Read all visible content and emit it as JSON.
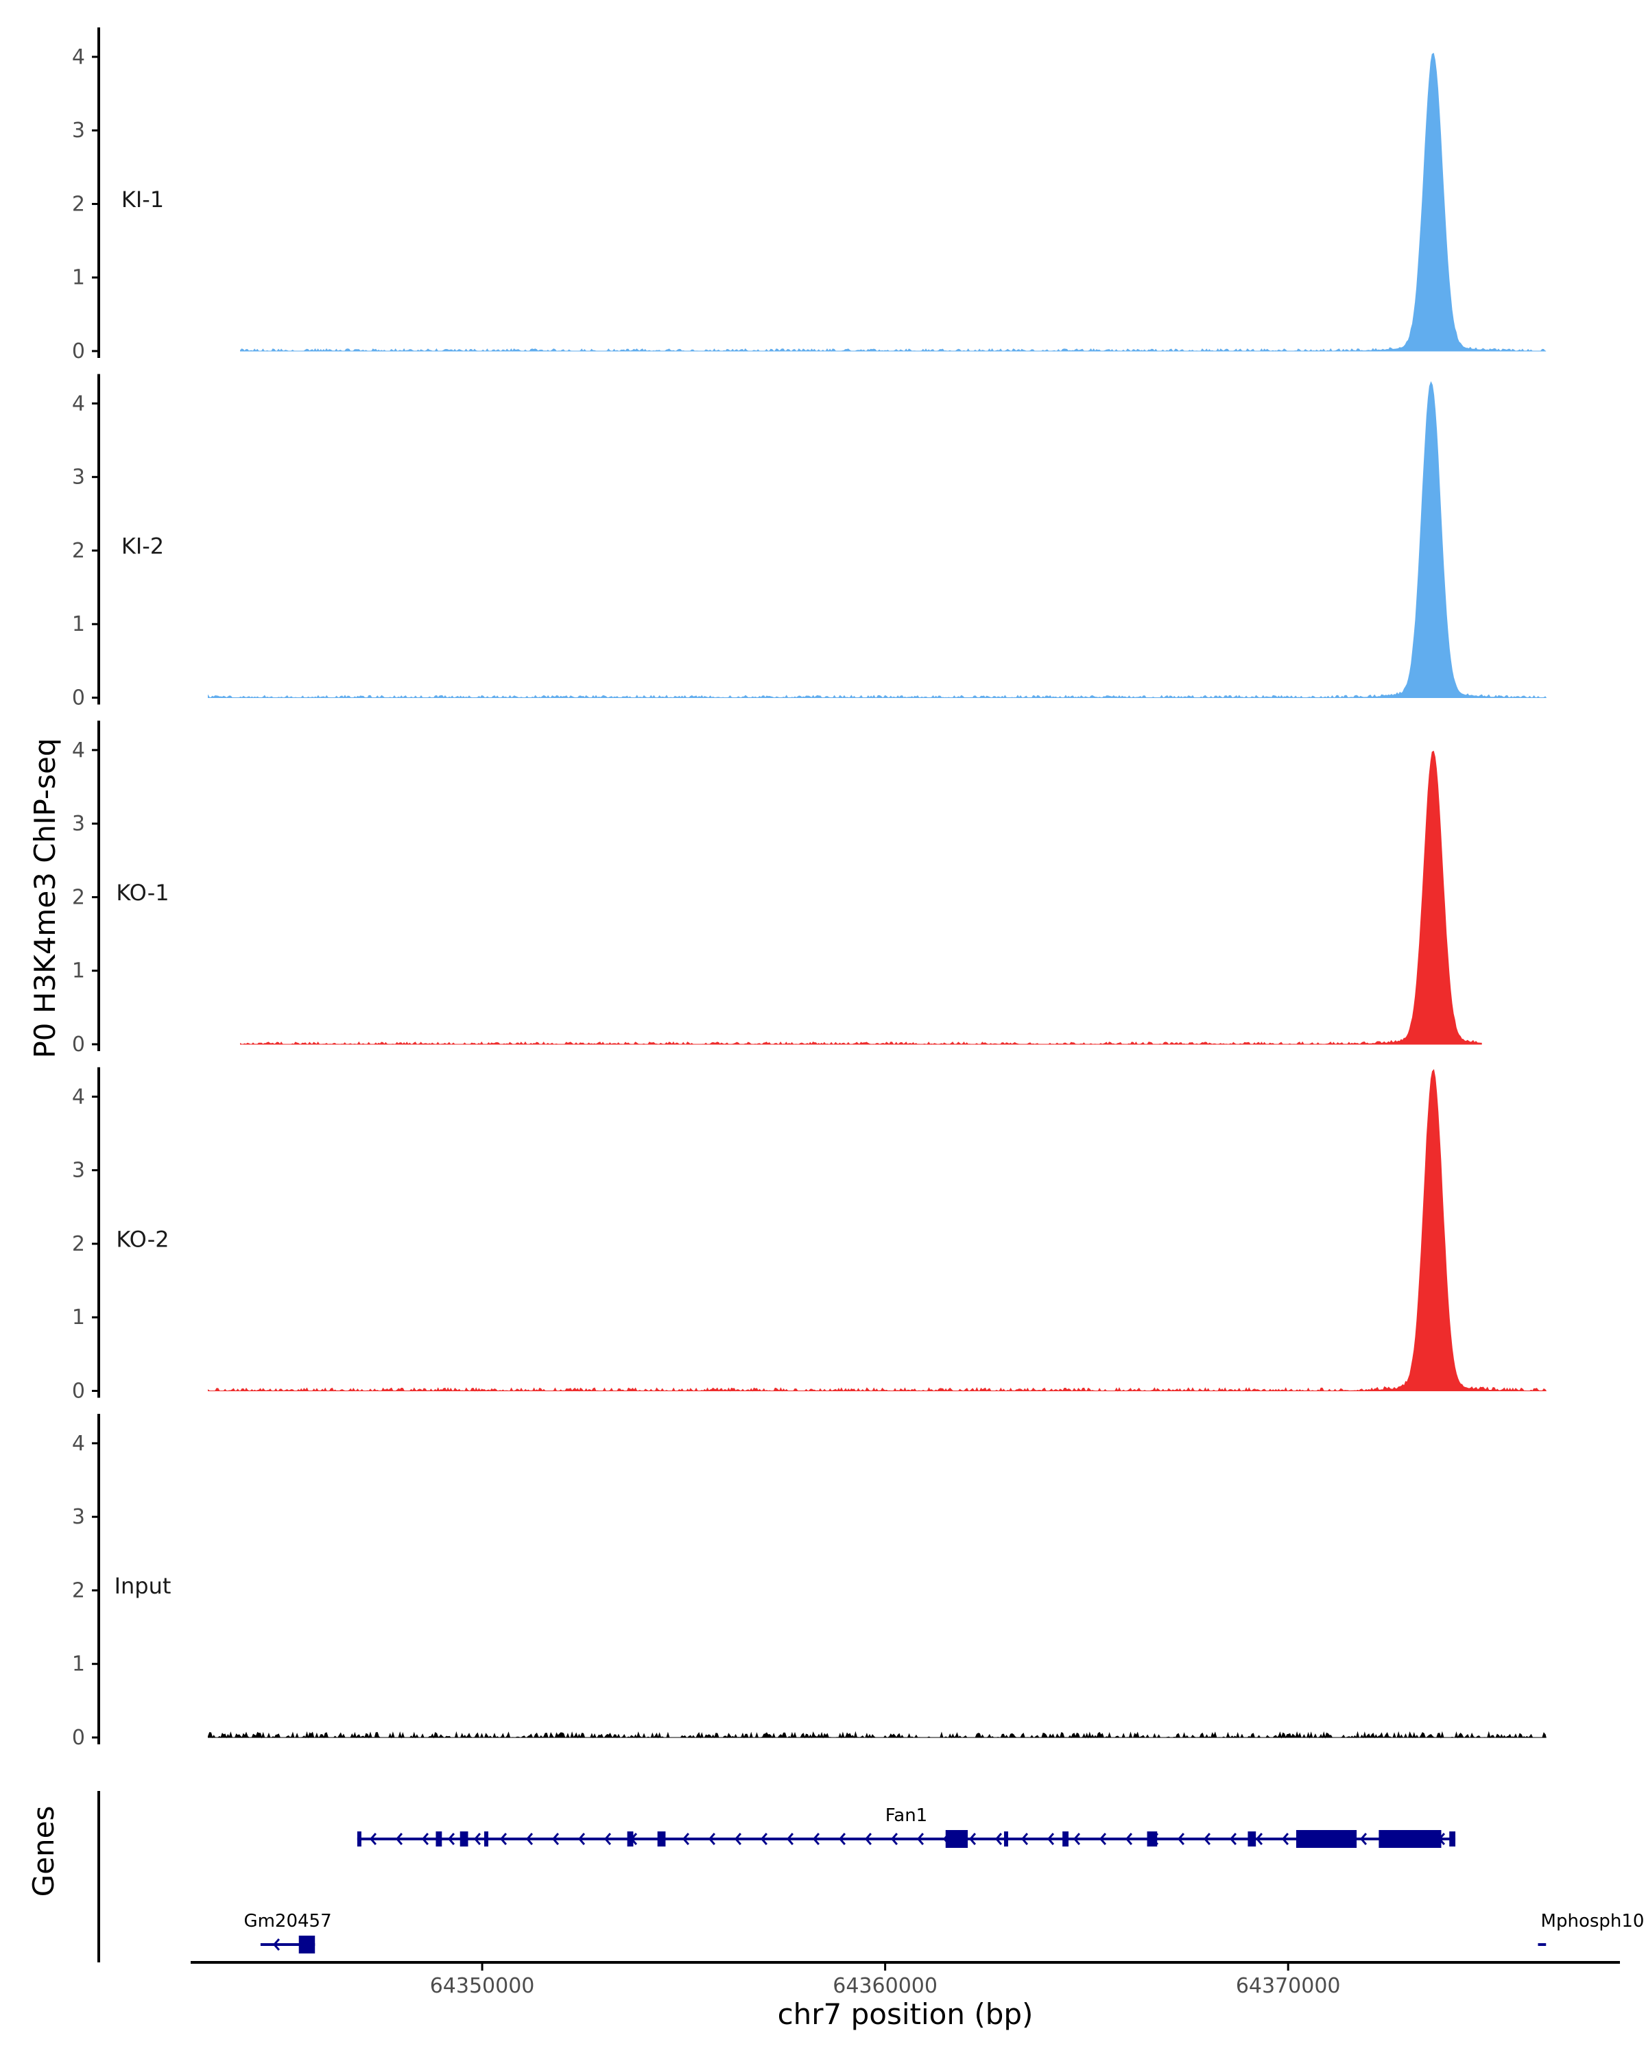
{
  "chart_data": {
    "type": "area",
    "ylabel": "P0 H3K4me3 ChIP-seq",
    "xlabel": "chr7 position (bp)",
    "xlim": [
      64342800,
      64378200
    ],
    "ylim": [
      0,
      4.4
    ],
    "yticks": [
      0,
      1,
      2,
      3,
      4
    ],
    "xticks": [
      64350000,
      64360000,
      64370000
    ],
    "xtick_labels": [
      "64350000",
      "64360000",
      "64370000"
    ],
    "grid": false,
    "tracks": [
      {
        "name": "KI-1",
        "color": "#61ADEE",
        "peak": {
          "center": 64373600,
          "height": 3.97,
          "sigma": 230
        },
        "background": {
          "start": 64344000,
          "end": 64376400,
          "level": 0.03
        }
      },
      {
        "name": "KI-2",
        "color": "#61ADEE",
        "peak": {
          "center": 64373550,
          "height": 4.22,
          "sigma": 230
        },
        "background": {
          "start": 64343200,
          "end": 64376400,
          "level": 0.03
        }
      },
      {
        "name": "KO-1",
        "color": "#EE2C2C",
        "peak": {
          "center": 64373600,
          "height": 3.92,
          "sigma": 230
        },
        "background": {
          "start": 64344000,
          "end": 64374800,
          "level": 0.03
        }
      },
      {
        "name": "KO-2",
        "color": "#EE2C2C",
        "peak": {
          "center": 64373600,
          "height": 4.28,
          "sigma": 230
        },
        "background": {
          "start": 64343200,
          "end": 64376400,
          "level": 0.04
        }
      },
      {
        "name": "Input",
        "color": "#000000",
        "peak": null,
        "background": {
          "start": 64343200,
          "end": 64376400,
          "level": 0.07
        }
      }
    ],
    "genes_label": "Genes",
    "genes": [
      {
        "name": "Fan1",
        "start": 64346900,
        "end": 64374150,
        "strand": "-",
        "exons": [
          [
            64346900,
            64347000
          ],
          [
            64348850,
            64349000
          ],
          [
            64349450,
            64349650
          ],
          [
            64350050,
            64350150
          ],
          [
            64353600,
            64353750
          ],
          [
            64354350,
            64354550
          ],
          [
            64361500,
            64362050
          ],
          [
            64362950,
            64363050
          ],
          [
            64364400,
            64364550
          ],
          [
            64366500,
            64366750
          ],
          [
            64369000,
            64369200
          ],
          [
            64370200,
            64371700
          ],
          [
            64372250,
            64373800
          ],
          [
            64374000,
            64374150
          ]
        ]
      },
      {
        "name": "Gm20457",
        "start": 64344500,
        "end": 64345850,
        "strand": "-",
        "exons": [
          [
            64345450,
            64345850
          ]
        ]
      },
      {
        "name": "Mphosph10",
        "start": 64376200,
        "end": 64376400,
        "strand": "-",
        "exons": []
      }
    ]
  }
}
